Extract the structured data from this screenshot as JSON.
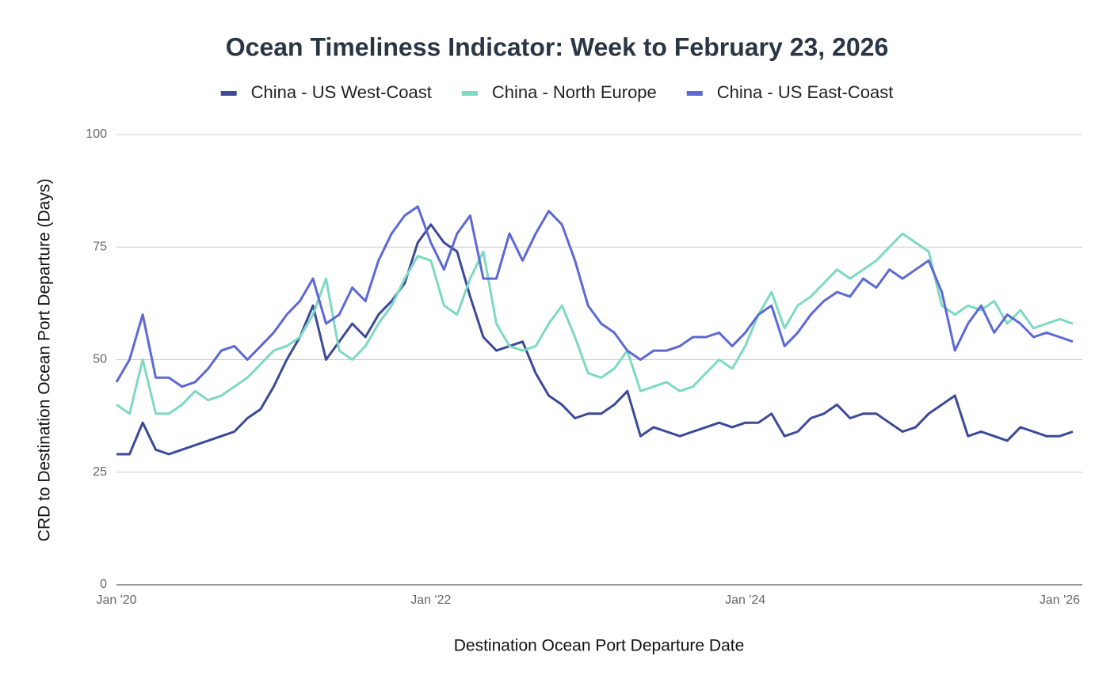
{
  "chart_data": {
    "type": "line",
    "title": "Ocean Timeliness Indicator: Week to February 23, 2026",
    "x_label": "Destination Ocean Port Departure Date",
    "y_label": "CRD to Destination Ocean Port Departure (Days)",
    "x": [
      "2020-01",
      "2020-02",
      "2020-03",
      "2020-04",
      "2020-05",
      "2020-06",
      "2020-07",
      "2020-08",
      "2020-09",
      "2020-10",
      "2020-11",
      "2020-12",
      "2021-01",
      "2021-02",
      "2021-03",
      "2021-04",
      "2021-05",
      "2021-06",
      "2021-07",
      "2021-08",
      "2021-09",
      "2021-10",
      "2021-11",
      "2021-12",
      "2022-01",
      "2022-02",
      "2022-03",
      "2022-04",
      "2022-05",
      "2022-06",
      "2022-07",
      "2022-08",
      "2022-09",
      "2022-10",
      "2022-11",
      "2022-12",
      "2023-01",
      "2023-02",
      "2023-03",
      "2023-04",
      "2023-05",
      "2023-06",
      "2023-07",
      "2023-08",
      "2023-09",
      "2023-10",
      "2023-11",
      "2023-12",
      "2024-01",
      "2024-02",
      "2024-03",
      "2024-04",
      "2024-05",
      "2024-06",
      "2024-07",
      "2024-08",
      "2024-09",
      "2024-10",
      "2024-11",
      "2024-12",
      "2025-01",
      "2025-02",
      "2025-03",
      "2025-04",
      "2025-05",
      "2025-06",
      "2025-07",
      "2025-08",
      "2025-09",
      "2025-10",
      "2025-11",
      "2025-12",
      "2026-01",
      "2026-02"
    ],
    "series": [
      {
        "name": "China - US West-Coast",
        "color": "#3b4997",
        "values": [
          29,
          29,
          36,
          30,
          29,
          30,
          31,
          32,
          33,
          34,
          37,
          39,
          44,
          50,
          55,
          62,
          50,
          54,
          58,
          55,
          60,
          63,
          67,
          76,
          80,
          76,
          74,
          64,
          55,
          52,
          53,
          54,
          47,
          42,
          40,
          37,
          38,
          38,
          40,
          43,
          33,
          35,
          34,
          33,
          34,
          35,
          36,
          35,
          36,
          36,
          38,
          33,
          34,
          37,
          38,
          40,
          37,
          38,
          38,
          36,
          34,
          35,
          38,
          40,
          42,
          33,
          34,
          33,
          32,
          35,
          34,
          33,
          33,
          34
        ]
      },
      {
        "name": "China - North Europe",
        "color": "#7dd9c1",
        "values": [
          40,
          38,
          50,
          38,
          38,
          40,
          43,
          41,
          42,
          44,
          46,
          49,
          52,
          53,
          55,
          60,
          68,
          52,
          50,
          53,
          58,
          62,
          68,
          73,
          72,
          62,
          60,
          68,
          74,
          58,
          53,
          52,
          53,
          58,
          62,
          55,
          47,
          46,
          48,
          52,
          43,
          44,
          45,
          43,
          44,
          47,
          50,
          48,
          53,
          60,
          65,
          57,
          62,
          64,
          67,
          70,
          68,
          70,
          72,
          75,
          78,
          76,
          74,
          62,
          60,
          62,
          61,
          63,
          58,
          61,
          57,
          58,
          59,
          58
        ]
      },
      {
        "name": "China - US East-Coast",
        "color": "#5c68d6",
        "values": [
          45,
          50,
          60,
          46,
          46,
          44,
          45,
          48,
          52,
          53,
          50,
          53,
          56,
          60,
          63,
          68,
          58,
          60,
          66,
          63,
          72,
          78,
          82,
          84,
          76,
          70,
          78,
          82,
          68,
          68,
          78,
          72,
          78,
          83,
          80,
          72,
          62,
          58,
          56,
          52,
          50,
          52,
          52,
          53,
          55,
          55,
          56,
          53,
          56,
          60,
          62,
          53,
          56,
          60,
          63,
          65,
          64,
          68,
          66,
          70,
          68,
          70,
          72,
          65,
          52,
          58,
          62,
          56,
          60,
          58,
          55,
          56,
          55,
          54
        ]
      }
    ],
    "xlim": [
      "2020-01",
      "2026-02"
    ],
    "xticks": [
      {
        "value": "2020-01",
        "label": "Jan '20"
      },
      {
        "value": "2022-01",
        "label": "Jan '22"
      },
      {
        "value": "2024-01",
        "label": "Jan '24"
      },
      {
        "value": "2026-01",
        "label": "Jan '26"
      }
    ],
    "ylim": [
      0,
      100
    ],
    "yticks": [
      0,
      25,
      50,
      75,
      100
    ],
    "grid": true,
    "legend": "top"
  }
}
